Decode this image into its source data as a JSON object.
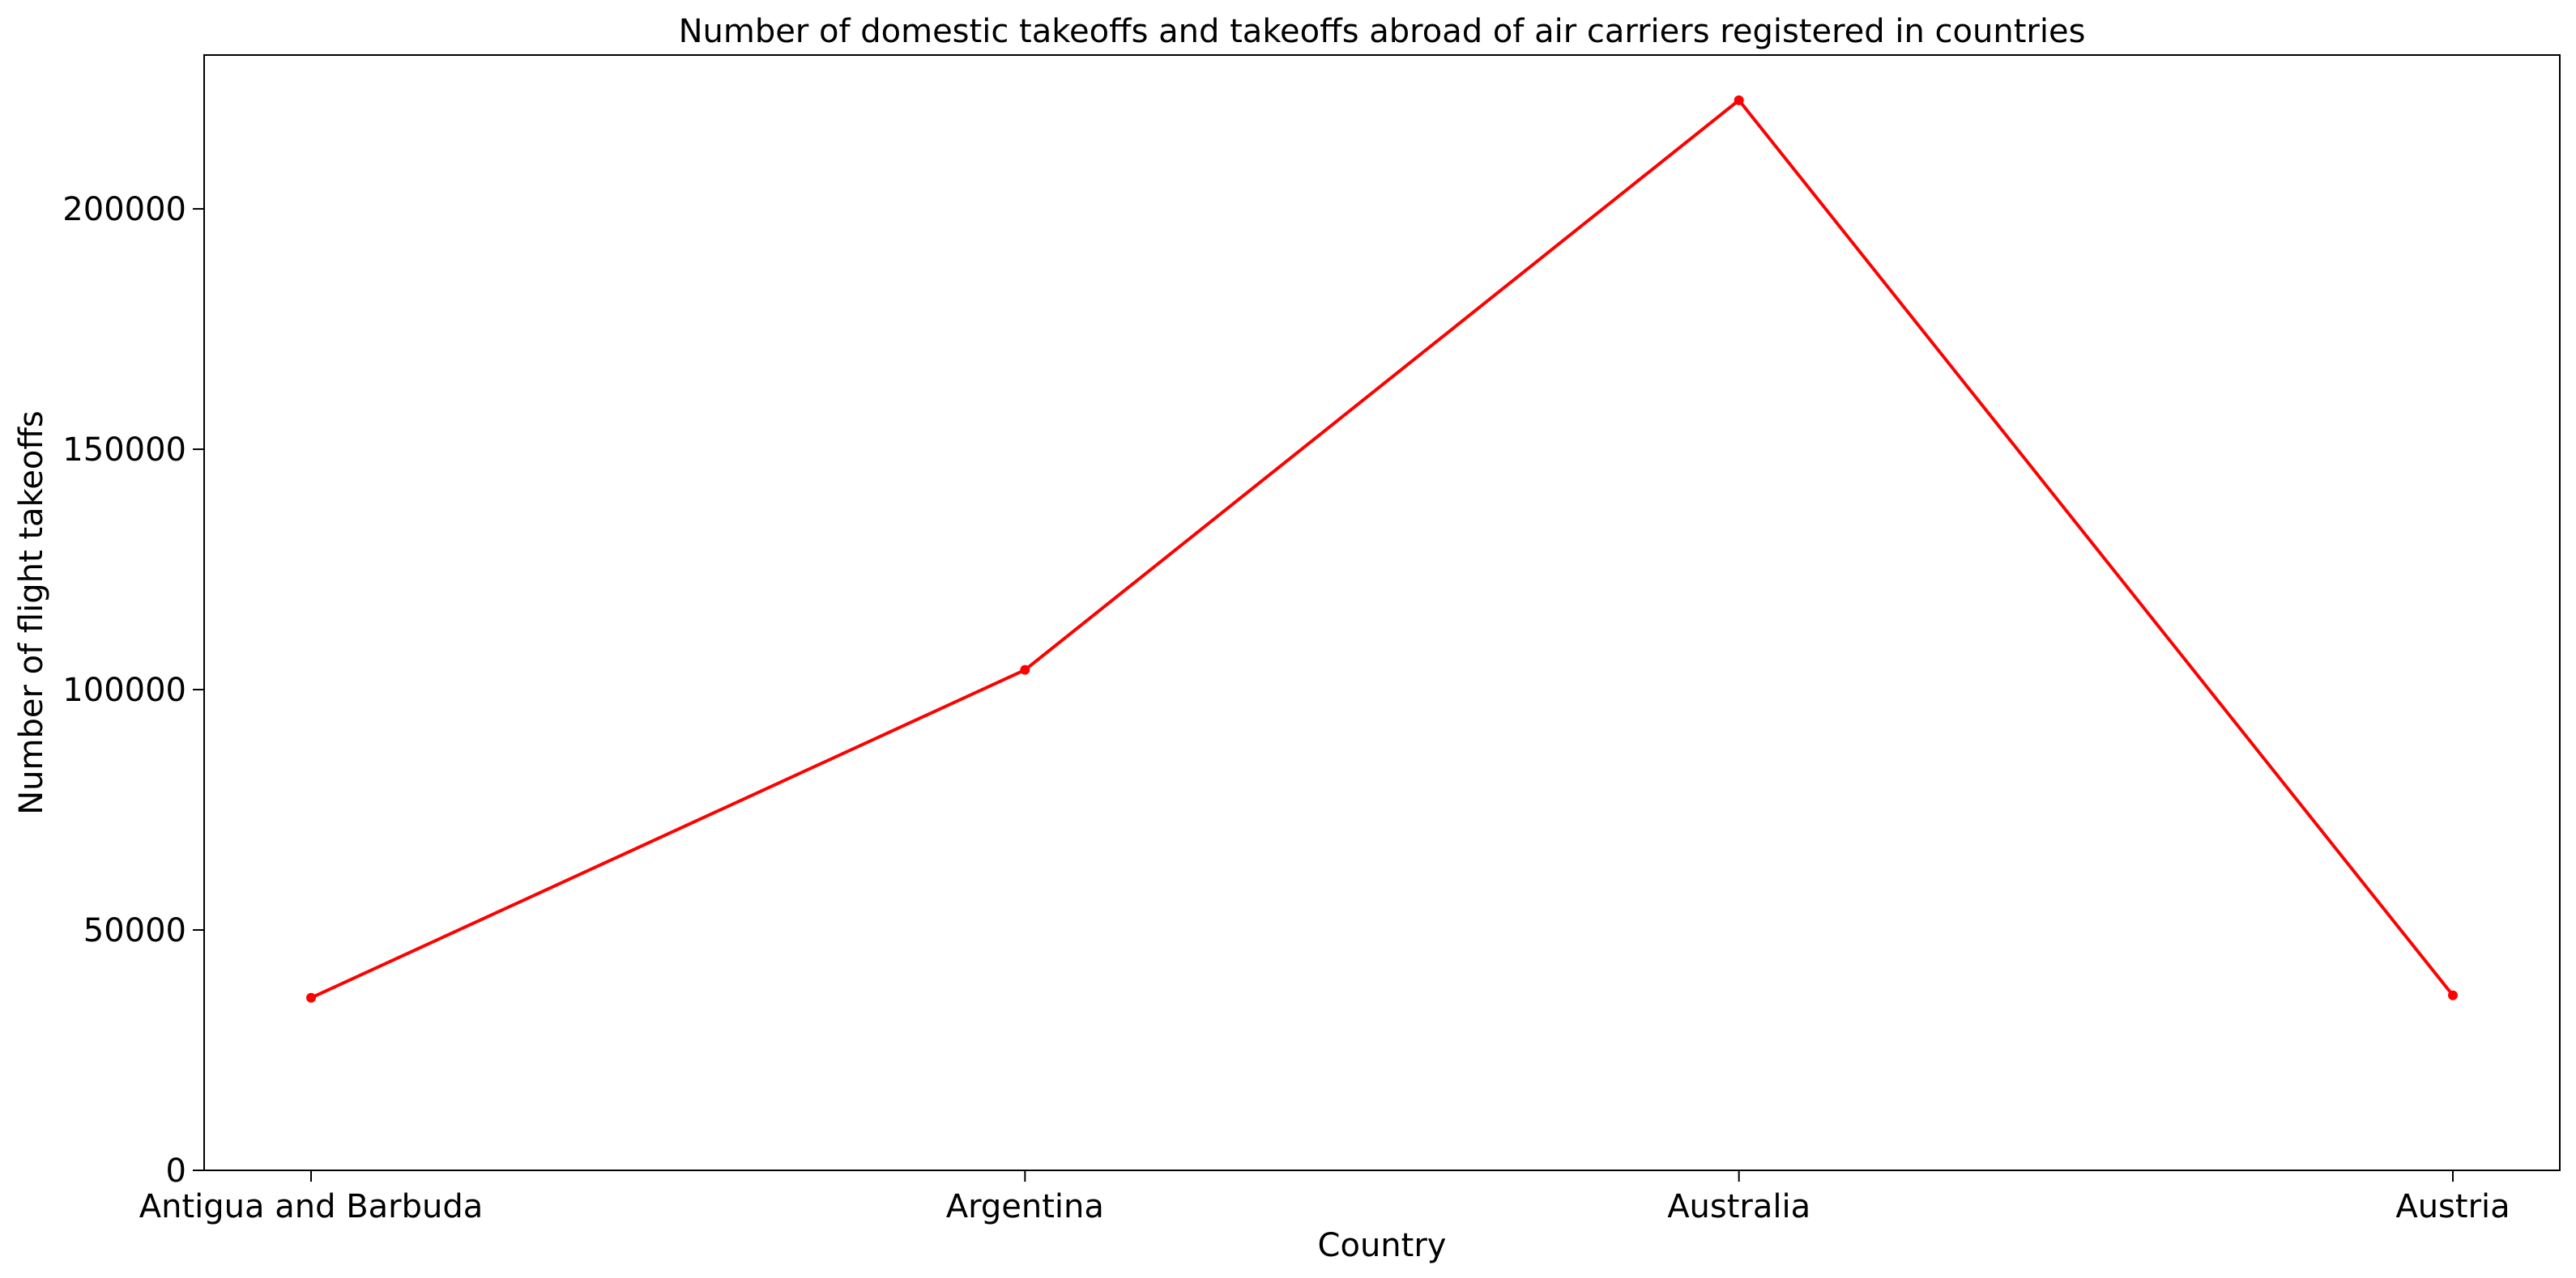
{
  "chart_data": {
    "type": "line",
    "title": "Number of domestic takeoffs and takeoffs abroad of air carriers registered in countries",
    "xlabel": "Country",
    "ylabel": "Number of flight takeoffs",
    "categories": [
      "Antigua and Barbuda",
      "Argentina",
      "Australia",
      "Austria"
    ],
    "series": [
      {
        "values": [
          35900,
          104100,
          222600,
          36400
        ],
        "color": "#ff0000"
      }
    ],
    "ylim": [
      0,
      232000
    ],
    "yticks": [
      0,
      50000,
      100000,
      150000,
      200000
    ],
    "ytick_labels": [
      "0",
      "50000",
      "100000",
      "150000",
      "200000"
    ],
    "grid": false,
    "legend": "none"
  }
}
